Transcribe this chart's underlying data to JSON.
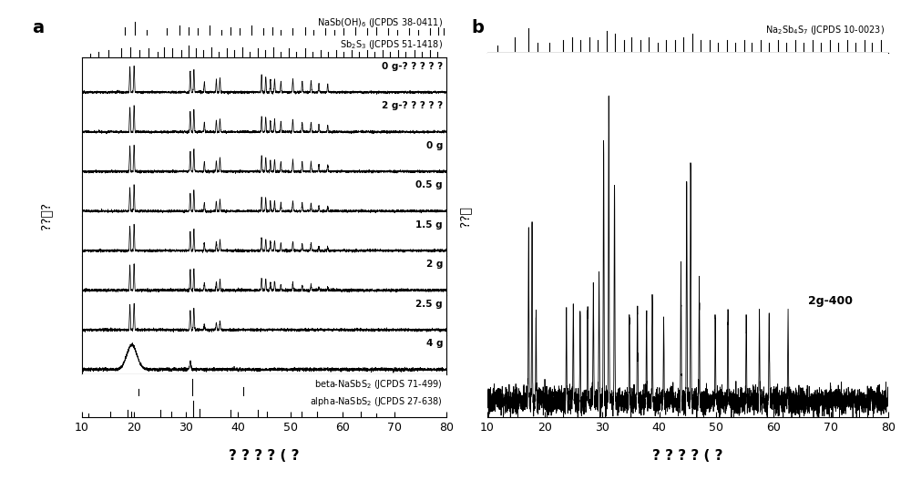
{
  "panel_a_label": "a",
  "panel_b_label": "b",
  "x_min": 10,
  "x_max": 80,
  "x_ticks": [
    10,
    20,
    30,
    40,
    50,
    60,
    70,
    80
  ],
  "xlabel": "? ? ? ? ( ?",
  "ylabel_a": "??．?",
  "ylabel_b": "??．",
  "nasb_oh6_peaks": [
    18.2,
    20.1,
    22.5,
    26.3,
    28.8,
    30.5,
    32.2,
    34.5,
    36.8,
    38.5,
    40.2,
    42.5,
    44.8,
    46.5,
    48.2,
    50.5,
    52.8,
    54.5,
    56.8,
    58.5,
    60.2,
    62.5,
    64.8,
    66.5,
    68.8,
    70.5,
    72.8,
    74.5,
    76.8,
    78.5,
    79.5
  ],
  "nasb_oh6_int": [
    0.5,
    0.8,
    0.3,
    0.4,
    0.6,
    0.5,
    0.4,
    0.6,
    0.3,
    0.5,
    0.4,
    0.6,
    0.4,
    0.5,
    0.3,
    0.4,
    0.5,
    0.3,
    0.4,
    0.3,
    0.4,
    0.5,
    0.4,
    0.5,
    0.4,
    0.3,
    0.4,
    0.3,
    0.4,
    0.5,
    0.4
  ],
  "sb2s3_peaks": [
    11.5,
    13.2,
    15.0,
    17.5,
    19.2,
    21.0,
    22.8,
    24.5,
    25.8,
    27.3,
    29.0,
    30.5,
    31.8,
    33.2,
    34.8,
    36.2,
    37.8,
    39.2,
    40.8,
    42.2,
    43.8,
    45.2,
    46.8,
    48.2,
    49.8,
    51.2,
    52.8,
    54.2,
    55.8,
    57.2,
    58.8,
    60.2,
    61.8,
    63.2,
    64.8,
    66.2,
    67.8,
    69.2,
    70.8,
    72.2,
    73.8,
    75.2,
    76.8,
    78.2
  ],
  "sb2s3_int": [
    0.2,
    0.3,
    0.4,
    0.5,
    0.6,
    0.4,
    0.5,
    0.3,
    0.6,
    0.5,
    0.4,
    0.7,
    0.5,
    0.4,
    0.6,
    0.3,
    0.5,
    0.4,
    0.6,
    0.3,
    0.5,
    0.4,
    0.6,
    0.3,
    0.5,
    0.3,
    0.5,
    0.3,
    0.4,
    0.3,
    0.4,
    0.3,
    0.4,
    0.3,
    0.4,
    0.3,
    0.4,
    0.3,
    0.4,
    0.3,
    0.4,
    0.3,
    0.4,
    0.3
  ],
  "beta_peaks": [
    20.8,
    31.2,
    41.0
  ],
  "beta_int": [
    0.4,
    1.0,
    0.5
  ],
  "alpha_peaks": [
    11.2,
    15.5,
    18.8,
    19.5,
    25.0,
    27.2,
    31.3,
    32.5,
    38.5,
    43.8,
    45.5,
    52.2,
    55.2,
    63.5,
    66.5
  ],
  "alpha_int": [
    0.2,
    0.3,
    0.4,
    0.3,
    0.4,
    0.3,
    1.0,
    0.5,
    0.4,
    0.4,
    0.3,
    0.3,
    0.3,
    0.3,
    0.2
  ],
  "meas_peaks_main": [
    19.2,
    20.0,
    30.8,
    31.5,
    33.5,
    35.8,
    36.5,
    44.5,
    45.3,
    46.2,
    47.0,
    48.2,
    50.5,
    52.3,
    54.0,
    55.5,
    57.2
  ],
  "meas_int_0gq": [
    0.85,
    0.9,
    0.72,
    0.78,
    0.35,
    0.42,
    0.48,
    0.58,
    0.52,
    0.42,
    0.45,
    0.38,
    0.45,
    0.38,
    0.38,
    0.3,
    0.28
  ],
  "meas_int_2gq": [
    0.82,
    0.88,
    0.68,
    0.74,
    0.32,
    0.38,
    0.44,
    0.52,
    0.48,
    0.38,
    0.4,
    0.32,
    0.4,
    0.32,
    0.32,
    0.25,
    0.22
  ],
  "meas_int_0g": [
    0.8,
    0.86,
    0.65,
    0.72,
    0.3,
    0.35,
    0.42,
    0.5,
    0.45,
    0.35,
    0.38,
    0.3,
    0.38,
    0.3,
    0.3,
    0.22,
    0.2
  ],
  "meas_int_05g": [
    0.78,
    0.84,
    0.62,
    0.68,
    0.28,
    0.32,
    0.38,
    0.46,
    0.42,
    0.32,
    0.34,
    0.26,
    0.34,
    0.26,
    0.26,
    0.18,
    0.16
  ],
  "meas_int_15g": [
    0.75,
    0.8,
    0.58,
    0.64,
    0.24,
    0.28,
    0.34,
    0.4,
    0.36,
    0.28,
    0.3,
    0.22,
    0.28,
    0.22,
    0.22,
    0.14,
    0.12
  ],
  "meas_int_2g": [
    0.7,
    0.75,
    0.55,
    0.6,
    0.2,
    0.24,
    0.3,
    0.35,
    0.3,
    0.22,
    0.24,
    0.16,
    0.22,
    0.16,
    0.16,
    0.1,
    0.08
  ],
  "meas_int_25g": [
    0.65,
    0.68,
    0.5,
    0.55,
    0.15,
    0.18,
    0.22,
    0.2,
    0.15,
    0.1,
    0.1,
    0.06,
    0.08,
    0.05,
    0.05,
    0.03,
    0.02
  ],
  "meas_int_4g": [
    0.12,
    0.1,
    0.1,
    0.08,
    0.04,
    0.04,
    0.04,
    0.03,
    0.02,
    0.01,
    0.01,
    0.01,
    0.01,
    0.01,
    0.01,
    0.01,
    0.01
  ],
  "b_peaks": [
    17.2,
    17.8,
    18.5,
    23.8,
    25.0,
    26.2,
    27.5,
    28.5,
    29.5,
    30.3,
    31.2,
    32.2,
    34.8,
    36.2,
    37.8,
    38.8,
    40.8,
    43.8,
    44.8,
    45.5,
    47.0,
    49.8,
    52.0,
    55.2,
    57.5,
    59.2,
    62.5
  ],
  "b_int": [
    0.55,
    0.6,
    0.28,
    0.28,
    0.32,
    0.3,
    0.32,
    0.38,
    0.4,
    0.88,
    1.0,
    0.72,
    0.28,
    0.32,
    0.28,
    0.32,
    0.28,
    0.42,
    0.72,
    0.8,
    0.38,
    0.28,
    0.32,
    0.28,
    0.28,
    0.28,
    0.28
  ],
  "na2sb4s7_peaks": [
    11.8,
    14.8,
    17.2,
    18.8,
    20.8,
    23.2,
    24.8,
    26.2,
    27.8,
    29.2,
    30.8,
    32.2,
    33.8,
    35.2,
    36.8,
    38.2,
    39.8,
    41.2,
    42.8,
    44.2,
    45.8,
    47.2,
    48.8,
    50.2,
    51.8,
    53.2,
    54.8,
    56.2,
    57.8,
    59.2,
    60.8,
    62.2,
    63.8,
    65.2,
    66.8,
    68.2,
    69.8,
    71.2,
    72.8,
    74.2,
    75.8,
    77.2,
    78.8
  ],
  "na2sb4s7_int": [
    0.2,
    0.5,
    0.8,
    0.3,
    0.3,
    0.4,
    0.5,
    0.4,
    0.5,
    0.4,
    0.7,
    0.6,
    0.4,
    0.5,
    0.4,
    0.5,
    0.3,
    0.4,
    0.4,
    0.5,
    0.6,
    0.4,
    0.4,
    0.3,
    0.4,
    0.3,
    0.4,
    0.3,
    0.4,
    0.3,
    0.4,
    0.3,
    0.4,
    0.3,
    0.4,
    0.3,
    0.4,
    0.3,
    0.4,
    0.3,
    0.4,
    0.3,
    0.4
  ],
  "fwhm_sharp": 0.18,
  "fwhm_broad": 1.5,
  "noise": 0.018
}
